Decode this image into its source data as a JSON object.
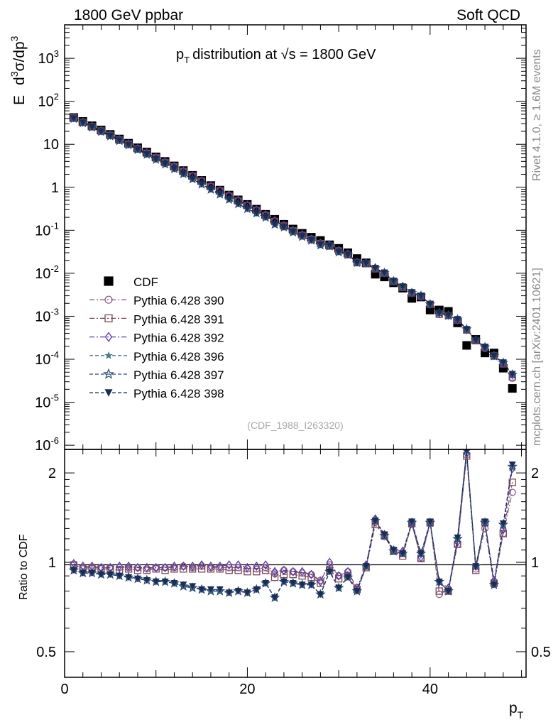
{
  "header": {
    "left": "1800 GeV ppbar",
    "right": "Soft QCD"
  },
  "side_text": {
    "rivet": "Rivet 4.1.0, ≥ 1.6M events",
    "mcplots": "mcplots.cern.ch [arXiv:2401.10621]"
  },
  "chart_data": [
    {
      "type": "scatter",
      "title": "p_T distribution at √s = 1800 GeV",
      "title_main": "distribution at ",
      "title_sqrt": "√s",
      "title_tail": " = 1800 GeV",
      "xlabel": "p_T",
      "ylabel": "E d³σ/dp³",
      "yscale": "log",
      "xlim": [
        0,
        50.5
      ],
      "ylim": [
        8e-07,
        6000
      ],
      "legend_position": "middle-left",
      "watermark": "(CDF_1988_I263320)",
      "ytick_labels": [
        "10^{-6}",
        "10^{-5}",
        "10^{-4}",
        "10^{-3}",
        "10^{-2}",
        "10^{-1}",
        "1",
        "10",
        "10^{2}",
        "10^{3}"
      ],
      "x": [
        1,
        2,
        3,
        4,
        5,
        6,
        7,
        8,
        9,
        10,
        11,
        12,
        13,
        14,
        15,
        16,
        17,
        18,
        19,
        20,
        21,
        22,
        23,
        24,
        25,
        26,
        27,
        28,
        29,
        30,
        31,
        32,
        33,
        34,
        35,
        36,
        37,
        38,
        39,
        40,
        41,
        42,
        43,
        44,
        45,
        46,
        47,
        48,
        49
      ],
      "series": [
        {
          "name": "CDF",
          "color": "#000000",
          "marker": "square-filled",
          "values": [
            42,
            34,
            27,
            21.5,
            17,
            13.3,
            10.6,
            8.3,
            6.6,
            5.1,
            4.0,
            3.15,
            2.45,
            1.9,
            1.45,
            1.1,
            0.86,
            0.66,
            0.51,
            0.4,
            0.31,
            0.235,
            0.18,
            0.138,
            0.107,
            0.085,
            0.069,
            0.058,
            0.046,
            0.038,
            0.03,
            0.022,
            0.0175,
            0.0095,
            0.0082,
            0.006,
            0.0045,
            0.0026,
            0.0028,
            0.0014,
            0.0014,
            0.0013,
            0.0007,
            0.00021,
            0.00029,
            0.00014,
            0.00014,
            6.2e-05,
            2.1e-05
          ]
        },
        {
          "name": "Pythia 6.428 390",
          "color": "#8e5f8e",
          "marker": "circle-open",
          "values": [
            41.1,
            32.6,
            25.9,
            20.6,
            16.3,
            12.8,
            10.2,
            7.97,
            6.27,
            4.89,
            3.84,
            3.02,
            2.37,
            1.83,
            1.4,
            1.05,
            0.83,
            0.64,
            0.49,
            0.38,
            0.29,
            0.23,
            0.165,
            0.13,
            0.099,
            0.078,
            0.063,
            0.05,
            0.045,
            0.034,
            0.028,
            0.018,
            0.017,
            0.013,
            0.01,
            0.0065,
            0.0048,
            0.0035,
            0.0029,
            0.0019,
            0.0011,
            0.00105,
            0.00081,
            0.00048,
            0.00027,
            0.00018,
            0.000118,
            7.8e-05,
            3.6e-05
          ]
        },
        {
          "name": "Pythia 6.428 391",
          "color": "#7a4858",
          "marker": "square-open",
          "values": [
            41.3,
            32.3,
            25.6,
            20.4,
            16.1,
            12.5,
            10.1,
            7.8,
            6.2,
            4.84,
            3.76,
            2.98,
            2.33,
            1.81,
            1.38,
            1.04,
            0.82,
            0.62,
            0.48,
            0.373,
            0.29,
            0.22,
            0.16,
            0.126,
            0.097,
            0.076,
            0.061,
            0.049,
            0.043,
            0.033,
            0.027,
            0.0178,
            0.0168,
            0.0127,
            0.0101,
            0.0065,
            0.0047,
            0.0035,
            0.0029,
            0.0019,
            0.00112,
            0.00104,
            0.00081,
            0.00048,
            0.00027,
            0.00019,
            0.000119,
            7.8e-05,
            3.9e-05
          ]
        },
        {
          "name": "Pythia 6.428 392",
          "color": "#5a3a9a",
          "marker": "diamond-open",
          "values": [
            41.5,
            32.9,
            26.2,
            20.7,
            16.4,
            12.9,
            10.3,
            8.0,
            6.3,
            4.9,
            3.86,
            3.05,
            2.38,
            1.84,
            1.42,
            1.07,
            0.84,
            0.65,
            0.5,
            0.385,
            0.3,
            0.23,
            0.167,
            0.13,
            0.099,
            0.079,
            0.063,
            0.05,
            0.046,
            0.034,
            0.028,
            0.0181,
            0.0172,
            0.0133,
            0.0102,
            0.0066,
            0.0049,
            0.0035,
            0.0029,
            0.0019,
            0.0012,
            0.00106,
            0.00082,
            0.00049,
            0.00028,
            0.00019,
            0.000122,
            8e-05,
            4.4e-05
          ]
        },
        {
          "name": "Pythia 6.428 396",
          "color": "#4f7a8c",
          "marker": "star-filled",
          "values": [
            39.5,
            31.5,
            25.0,
            19.8,
            15.6,
            12.2,
            9.6,
            7.5,
            5.8,
            4.4,
            3.45,
            2.68,
            2.05,
            1.56,
            1.17,
            0.89,
            0.69,
            0.52,
            0.41,
            0.315,
            0.25,
            0.2,
            0.137,
            0.118,
            0.09,
            0.071,
            0.058,
            0.045,
            0.043,
            0.031,
            0.027,
            0.0175,
            0.017,
            0.0131,
            0.0101,
            0.0065,
            0.0048,
            0.0035,
            0.003,
            0.0019,
            0.0012,
            0.00104,
            0.00084,
            0.0005,
            0.00028,
            0.00019,
            0.000118,
            8.3e-05,
            4.4e-05
          ]
        },
        {
          "name": "Pythia 6.428 397",
          "color": "#2d4a76",
          "marker": "star-open",
          "values": [
            39.6,
            31.4,
            24.9,
            19.7,
            15.5,
            12.1,
            9.6,
            7.5,
            5.8,
            4.42,
            3.45,
            2.68,
            2.05,
            1.56,
            1.17,
            0.89,
            0.69,
            0.52,
            0.41,
            0.316,
            0.25,
            0.2,
            0.137,
            0.118,
            0.09,
            0.071,
            0.058,
            0.045,
            0.043,
            0.031,
            0.027,
            0.0175,
            0.017,
            0.0131,
            0.0101,
            0.0065,
            0.0048,
            0.0035,
            0.003,
            0.0019,
            0.0012,
            0.00104,
            0.00084,
            0.0005,
            0.00028,
            0.00019,
            0.000118,
            8.3e-05,
            4.4e-05
          ]
        },
        {
          "name": "Pythia 6.428 398",
          "color": "#1a2e55",
          "marker": "triangle-down-filled",
          "values": [
            39.7,
            31.6,
            25.1,
            19.9,
            15.6,
            12.2,
            9.6,
            7.5,
            5.8,
            4.43,
            3.46,
            2.69,
            2.06,
            1.57,
            1.18,
            0.9,
            0.7,
            0.53,
            0.41,
            0.318,
            0.25,
            0.2,
            0.138,
            0.118,
            0.091,
            0.072,
            0.058,
            0.046,
            0.044,
            0.031,
            0.027,
            0.0176,
            0.0171,
            0.0132,
            0.0102,
            0.0066,
            0.0049,
            0.0036,
            0.003,
            0.0019,
            0.0012,
            0.00105,
            0.00085,
            0.0005,
            0.00028,
            0.00019,
            0.000119,
            8.4e-05,
            4.5e-05
          ]
        }
      ]
    },
    {
      "type": "scatter",
      "ylabel": "Ratio to CDF",
      "xlabel": "p_T",
      "xlim": [
        0,
        50.5
      ],
      "ylim": [
        0.41,
        2.4
      ],
      "yscale": "log",
      "yticks_major": [
        0.5,
        1,
        2
      ],
      "ytick_labels": [
        "0.5",
        "1",
        "2"
      ],
      "xticks_major": [
        0,
        20,
        40
      ],
      "xtick_labels": [
        "0",
        "20",
        "40"
      ],
      "reference_line": 1,
      "x": [
        1,
        2,
        3,
        4,
        5,
        6,
        7,
        8,
        9,
        10,
        11,
        12,
        13,
        14,
        15,
        16,
        17,
        18,
        19,
        20,
        21,
        22,
        23,
        24,
        25,
        26,
        27,
        28,
        29,
        30,
        31,
        32,
        33,
        34,
        35,
        36,
        37,
        38,
        39,
        40,
        41,
        42,
        43,
        44,
        45,
        46,
        47,
        48,
        49
      ],
      "series": [
        {
          "name": "Pythia 6.428 390",
          "color": "#8e5f8e",
          "marker": "circle-open",
          "values": [
            0.98,
            0.96,
            0.96,
            0.96,
            0.96,
            0.96,
            0.96,
            0.96,
            0.95,
            0.96,
            0.96,
            0.96,
            0.97,
            0.96,
            0.97,
            0.96,
            0.96,
            0.96,
            0.96,
            0.95,
            0.95,
            0.96,
            0.92,
            0.94,
            0.93,
            0.92,
            0.91,
            0.87,
            0.98,
            0.9,
            0.93,
            0.81,
            0.97,
            1.37,
            1.22,
            1.09,
            1.07,
            1.35,
            1.03,
            1.35,
            0.78,
            0.81,
            1.15,
            2.3,
            0.95,
            1.3,
            0.85,
            1.25,
            1.72
          ]
        },
        {
          "name": "Pythia 6.428 391",
          "color": "#7a4858",
          "marker": "square-open",
          "values": [
            0.98,
            0.95,
            0.95,
            0.95,
            0.95,
            0.94,
            0.95,
            0.94,
            0.94,
            0.95,
            0.94,
            0.95,
            0.95,
            0.95,
            0.95,
            0.95,
            0.95,
            0.94,
            0.94,
            0.93,
            0.93,
            0.94,
            0.89,
            0.91,
            0.91,
            0.9,
            0.89,
            0.85,
            0.94,
            0.88,
            0.9,
            0.81,
            0.96,
            1.34,
            1.23,
            1.09,
            1.05,
            1.35,
            1.03,
            1.36,
            0.8,
            0.8,
            1.15,
            2.28,
            0.94,
            1.36,
            0.85,
            1.25,
            1.86
          ]
        },
        {
          "name": "Pythia 6.428 392",
          "color": "#5a3a9a",
          "marker": "diamond-open",
          "values": [
            0.99,
            0.97,
            0.97,
            0.96,
            0.96,
            0.97,
            0.97,
            0.96,
            0.96,
            0.96,
            0.96,
            0.97,
            0.97,
            0.97,
            0.98,
            0.97,
            0.97,
            0.98,
            0.98,
            0.96,
            0.97,
            0.98,
            0.93,
            0.94,
            0.93,
            0.93,
            0.91,
            0.86,
            1.0,
            0.9,
            0.93,
            0.82,
            0.98,
            1.4,
            1.24,
            1.1,
            1.09,
            1.35,
            1.04,
            1.36,
            0.86,
            0.82,
            1.17,
            2.33,
            0.97,
            1.36,
            0.87,
            1.29,
            2.07
          ]
        },
        {
          "name": "Pythia 6.428 396",
          "color": "#4f7a8c",
          "marker": "star-filled",
          "values": [
            0.94,
            0.92,
            0.92,
            0.91,
            0.91,
            0.9,
            0.89,
            0.88,
            0.88,
            0.86,
            0.86,
            0.85,
            0.83,
            0.82,
            0.81,
            0.8,
            0.8,
            0.79,
            0.8,
            0.79,
            0.81,
            0.85,
            0.76,
            0.86,
            0.85,
            0.84,
            0.84,
            0.78,
            0.93,
            0.82,
            0.89,
            0.8,
            0.97,
            1.38,
            1.23,
            1.09,
            1.07,
            1.36,
            1.07,
            1.36,
            0.86,
            0.8,
            1.2,
            2.38,
            0.97,
            1.36,
            0.84,
            1.34,
            2.1
          ]
        },
        {
          "name": "Pythia 6.428 397",
          "color": "#2d4a76",
          "marker": "star-open",
          "values": [
            0.94,
            0.92,
            0.92,
            0.91,
            0.91,
            0.9,
            0.89,
            0.88,
            0.87,
            0.86,
            0.86,
            0.85,
            0.83,
            0.82,
            0.81,
            0.8,
            0.8,
            0.79,
            0.8,
            0.79,
            0.81,
            0.85,
            0.76,
            0.86,
            0.85,
            0.84,
            0.84,
            0.78,
            0.93,
            0.82,
            0.89,
            0.8,
            0.97,
            1.38,
            1.23,
            1.09,
            1.07,
            1.36,
            1.07,
            1.36,
            0.86,
            0.8,
            1.2,
            2.38,
            0.97,
            1.36,
            0.84,
            1.34,
            2.1
          ]
        },
        {
          "name": "Pythia 6.428 398",
          "color": "#1a2e55",
          "marker": "triangle-down-filled",
          "values": [
            0.94,
            0.92,
            0.92,
            0.91,
            0.91,
            0.9,
            0.89,
            0.88,
            0.87,
            0.86,
            0.86,
            0.85,
            0.84,
            0.83,
            0.81,
            0.81,
            0.81,
            0.79,
            0.8,
            0.79,
            0.81,
            0.85,
            0.76,
            0.86,
            0.85,
            0.84,
            0.84,
            0.78,
            0.93,
            0.82,
            0.89,
            0.8,
            0.97,
            1.38,
            1.24,
            1.1,
            1.07,
            1.37,
            1.07,
            1.37,
            0.86,
            0.8,
            1.21,
            2.38,
            0.97,
            1.37,
            0.84,
            1.35,
            2.13
          ]
        }
      ]
    }
  ]
}
